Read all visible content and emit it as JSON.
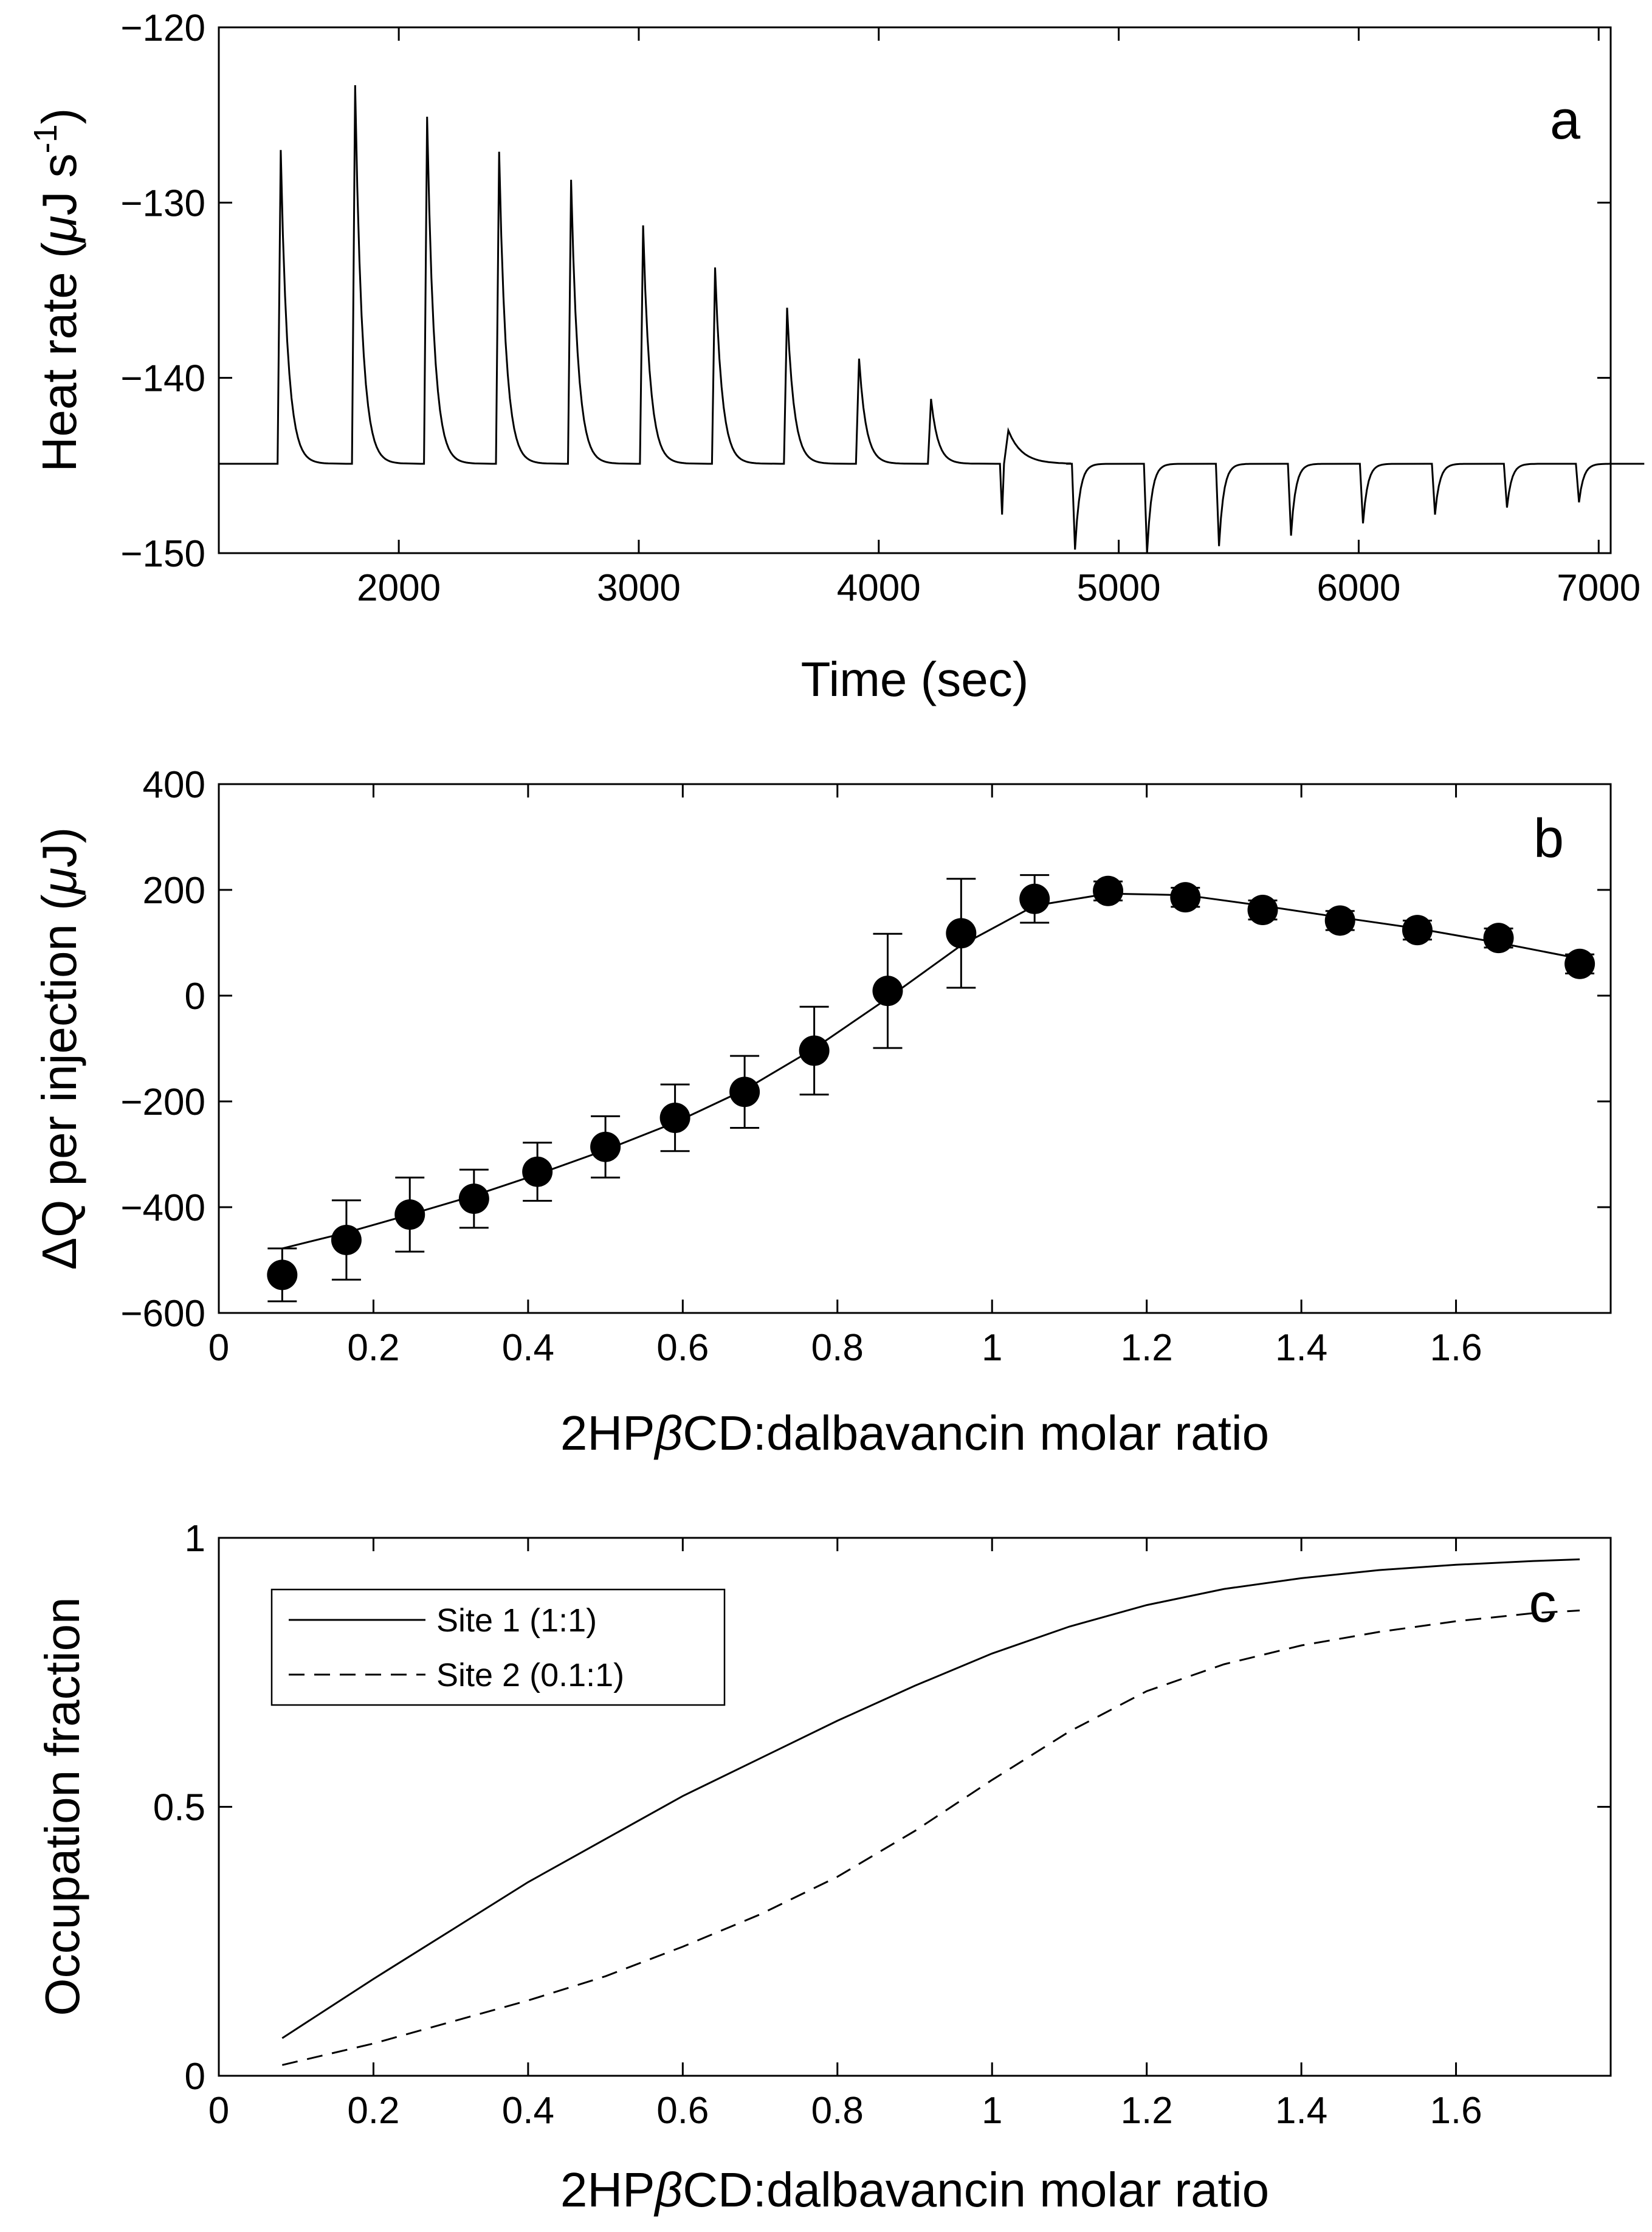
{
  "chart_data": [
    {
      "panel": "a",
      "type": "line",
      "xlabel": "Time (sec)",
      "ylabel": "Heat rate (μJ s⁻¹)",
      "xlim": [
        1250,
        7050
      ],
      "ylim": [
        -150,
        -120
      ],
      "x_ticks": [
        "2000",
        "3000",
        "4000",
        "5000",
        "6000",
        "7000"
      ],
      "x_tick_values": [
        2000,
        3000,
        4000,
        5000,
        6000,
        7000
      ],
      "y_ticks": [
        "-120",
        "-130",
        "-140",
        "-150"
      ],
      "y_tick_values": [
        -120,
        -130,
        -140,
        -150
      ],
      "baseline": -144.9,
      "injections": [
        {
          "time": 1500,
          "peak": -127.0
        },
        {
          "time": 1810,
          "peak": -123.3
        },
        {
          "time": 2110,
          "peak": -125.1
        },
        {
          "time": 2410,
          "peak": -127.1
        },
        {
          "time": 2710,
          "peak": -128.7
        },
        {
          "time": 3010,
          "peak": -131.3
        },
        {
          "time": 3310,
          "peak": -133.7
        },
        {
          "time": 3610,
          "peak": -136.0
        },
        {
          "time": 3910,
          "peak": -138.9
        },
        {
          "time": 4210,
          "peak": -141.2
        },
        {
          "time": 4510,
          "peak": -143.0,
          "dip": -147.8
        },
        {
          "time": 4810,
          "dip": -149.8
        },
        {
          "time": 5110,
          "dip": -150.0
        },
        {
          "time": 5410,
          "dip": -149.6
        },
        {
          "time": 5710,
          "dip": -149.0
        },
        {
          "time": 6010,
          "dip": -148.3
        },
        {
          "time": 6310,
          "dip": -147.8
        },
        {
          "time": 6610,
          "dip": -147.4
        },
        {
          "time": 6910,
          "dip": -147.1
        }
      ]
    },
    {
      "panel": "b",
      "type": "scatter",
      "xlabel": "2HPβCD:dalbavancin molar ratio",
      "ylabel": "ΔQ per injection (μJ)",
      "xlim": [
        0,
        1.8
      ],
      "ylim": [
        -600,
        400
      ],
      "x_ticks": [
        "0",
        "0.2",
        "0.4",
        "0.6",
        "0.8",
        "1",
        "1.2",
        "1.4",
        "1.6"
      ],
      "x_tick_values": [
        0,
        0.2,
        0.4,
        0.6,
        0.8,
        1,
        1.2,
        1.4,
        1.6
      ],
      "y_ticks": [
        "400",
        "200",
        "0",
        "-200",
        "-400",
        "-600"
      ],
      "y_tick_values": [
        400,
        200,
        0,
        -200,
        -400,
        -600
      ],
      "points": {
        "x": [
          0.082,
          0.165,
          0.247,
          0.33,
          0.412,
          0.5,
          0.59,
          0.68,
          0.77,
          0.865,
          0.96,
          1.055,
          1.15,
          1.25,
          1.35,
          1.45,
          1.55,
          1.655,
          1.76
        ],
        "y": [
          -528,
          -462,
          -414,
          -384,
          -333,
          -286,
          -231,
          -182,
          -104,
          9,
          118,
          183,
          198,
          186,
          162,
          142,
          124,
          109,
          60
        ],
        "err": [
          50,
          75,
          70,
          55,
          55,
          58,
          63,
          68,
          83,
          108,
          103,
          45,
          18,
          18,
          18,
          18,
          18,
          18,
          18
        ]
      },
      "fit": {
        "x": [
          0.082,
          0.165,
          0.247,
          0.33,
          0.412,
          0.5,
          0.59,
          0.68,
          0.77,
          0.865,
          0.96,
          1.055,
          1.15,
          1.25,
          1.35,
          1.45,
          1.55,
          1.655,
          1.76
        ],
        "y": [
          -478,
          -448,
          -414,
          -378,
          -338,
          -292,
          -240,
          -178,
          -100,
          -5,
          95,
          170,
          193,
          190,
          170,
          148,
          127,
          100,
          70
        ]
      }
    },
    {
      "panel": "c",
      "type": "line",
      "xlabel": "2HPβCD:dalbavancin molar ratio",
      "ylabel": "Occupation fraction",
      "xlim": [
        0,
        1.8
      ],
      "ylim": [
        0,
        1
      ],
      "x_ticks": [
        "0",
        "0.2",
        "0.4",
        "0.6",
        "0.8",
        "1",
        "1.2",
        "1.4",
        "1.6"
      ],
      "x_tick_values": [
        0,
        0.2,
        0.4,
        0.6,
        0.8,
        1,
        1.2,
        1.4,
        1.6
      ],
      "y_ticks": [
        "1",
        "0.5",
        "0"
      ],
      "y_tick_values": [
        1,
        0.5,
        0
      ],
      "legend_position": "top-left",
      "series": [
        {
          "name": "Site 1 (1:1)",
          "style": "solid",
          "x": [
            0.082,
            0.2,
            0.3,
            0.4,
            0.5,
            0.6,
            0.7,
            0.8,
            0.9,
            1.0,
            1.1,
            1.2,
            1.3,
            1.4,
            1.5,
            1.6,
            1.7,
            1.76
          ],
          "y": [
            0.07,
            0.18,
            0.27,
            0.36,
            0.44,
            0.52,
            0.59,
            0.66,
            0.725,
            0.785,
            0.835,
            0.875,
            0.905,
            0.925,
            0.94,
            0.95,
            0.957,
            0.96
          ]
        },
        {
          "name": "Site 2 (0.1:1)",
          "style": "dashed",
          "x": [
            0.082,
            0.2,
            0.3,
            0.4,
            0.5,
            0.6,
            0.7,
            0.8,
            0.9,
            1.0,
            1.1,
            1.2,
            1.3,
            1.4,
            1.5,
            1.6,
            1.7,
            1.76
          ],
          "y": [
            0.02,
            0.06,
            0.1,
            0.14,
            0.185,
            0.24,
            0.3,
            0.37,
            0.455,
            0.55,
            0.64,
            0.715,
            0.765,
            0.8,
            0.825,
            0.845,
            0.86,
            0.865
          ]
        }
      ]
    }
  ]
}
